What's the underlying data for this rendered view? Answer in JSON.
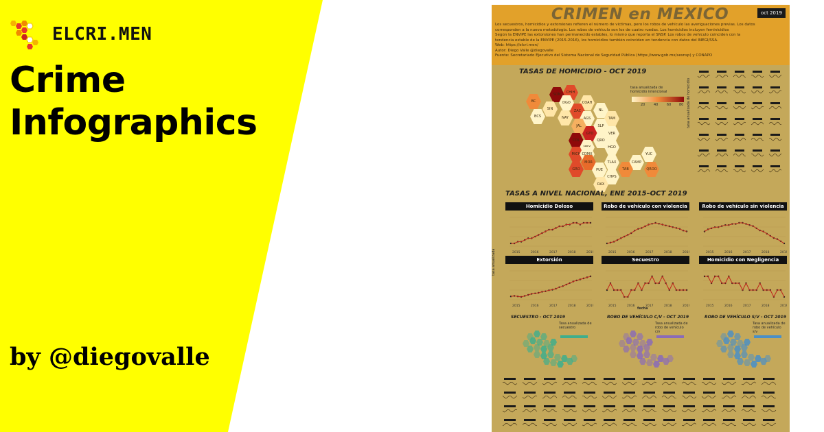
{
  "brand": {
    "name": "ELCRI.MEN",
    "logo_icon": "hexagon-cluster-icon"
  },
  "headline": {
    "line1": "Crime",
    "line2": "Infographics"
  },
  "byline": "by @diegovalle",
  "colors": {
    "banner": "#ffff00",
    "poster_bg": "#c4a85a",
    "poster_header": "#e2a12a"
  },
  "poster": {
    "title": "CRIMEN en MEXICO",
    "badge": "oct 2019",
    "intro": [
      "Los secuestros, homicidios y extorsiones refieren el número de víctimas, pero los robos de vehículo las averiguaciones previas. Los datos",
      "corresponden a la nueva metodología. Los robos de vehículo son los de cuatro ruedas. Los homicidios incluyen feminicidios",
      "Según la ENVIPE las extorsiones han permanecido estables, lo mismo que reporta el SNSP. Los robos de vehículo coinciden con la",
      "tendencia estable de la ENVIPE (2015-2016), los homicidios también coinciden en tendencia con datos del INEGI/SSA.",
      "Web: https://elcri.men/",
      "Autor: Diego Valle @diegovalle",
      "Fuente: Secretariado Ejecutivo del Sistema Nacional de Seguridad Pública (https://www.gob.mx/sesnsp) y CONAPO"
    ],
    "section_homicide": "TASAS DE HOMICIDIO - OCT 2019",
    "legend_title": "tasa anualizada de homicidio intencional",
    "legend_ticks": [
      "20",
      "40",
      "60",
      "80"
    ],
    "side_axis": "tasa anualizada de homicidio",
    "states": [
      {
        "code": "SON"
      },
      {
        "code": "CHIH"
      },
      {
        "code": "BC"
      },
      {
        "code": "DGO"
      },
      {
        "code": "COAH"
      },
      {
        "code": "SIN"
      },
      {
        "code": "ZAC"
      },
      {
        "code": "NL"
      },
      {
        "code": "BCS"
      },
      {
        "code": "NAY"
      },
      {
        "code": "AGS"
      },
      {
        "code": "TAM"
      },
      {
        "code": "JAL"
      },
      {
        "code": "SLP"
      },
      {
        "code": "GTO"
      },
      {
        "code": "VER"
      },
      {
        "code": "COL"
      },
      {
        "code": "QRO"
      },
      {
        "code": "MEX"
      },
      {
        "code": "HGO"
      },
      {
        "code": "MICH"
      },
      {
        "code": "CDMX"
      },
      {
        "code": "YUC"
      },
      {
        "code": "MOR"
      },
      {
        "code": "TLAX"
      },
      {
        "code": "CAMP"
      },
      {
        "code": "GRO"
      },
      {
        "code": "PUE"
      },
      {
        "code": "TAB"
      },
      {
        "code": "QROO"
      },
      {
        "code": "CHPS"
      },
      {
        "code": "OAX"
      }
    ],
    "section_national": "TASAS A NIVEL NACIONAL, ENE 2015–OCT 2019",
    "national_axis": "tasa anualizada",
    "national_xlabel": "fecha",
    "years": [
      "2015",
      "2016",
      "2017",
      "2018",
      "2019"
    ],
    "panels": [
      {
        "title": "Homicidio Doloso",
        "series": [
          17,
          17,
          18,
          18,
          19,
          20,
          20,
          21,
          22,
          23,
          24,
          25,
          25,
          26,
          27,
          27,
          28,
          28,
          29,
          29,
          28,
          29,
          29,
          29
        ]
      },
      {
        "title": "Robo de vehículo con violencia",
        "series": [
          40,
          41,
          42,
          44,
          46,
          48,
          50,
          52,
          55,
          57,
          58,
          60,
          62,
          63,
          64,
          63,
          62,
          61,
          60,
          59,
          58,
          57,
          55,
          54
        ]
      },
      {
        "title": "Robo de vehículo sin violencia",
        "series": [
          110,
          112,
          113,
          114,
          114,
          115,
          116,
          116,
          117,
          117,
          118,
          118,
          117,
          116,
          115,
          113,
          111,
          110,
          108,
          106,
          104,
          103,
          101,
          99
        ]
      },
      {
        "title": "Extorsión",
        "series": [
          4.5,
          4.6,
          4.5,
          4.4,
          4.6,
          4.8,
          5.0,
          5.1,
          5.2,
          5.4,
          5.5,
          5.7,
          5.8,
          6.0,
          6.3,
          6.5,
          6.8,
          7.1,
          7.4,
          7.6,
          7.8,
          8.0,
          8.2,
          8.4
        ]
      },
      {
        "title": "Secuestro",
        "series": [
          1.0,
          1.1,
          1.0,
          1.0,
          1.0,
          0.9,
          0.9,
          1.0,
          1.0,
          1.1,
          1.0,
          1.1,
          1.1,
          1.2,
          1.1,
          1.1,
          1.2,
          1.1,
          1.0,
          1.1,
          1.0,
          1.0,
          1.0,
          1.0
        ]
      },
      {
        "title": "Homicidio con Negligencia",
        "series": [
          14,
          14,
          13,
          14,
          14,
          13,
          13,
          14,
          13,
          13,
          13,
          12,
          13,
          12,
          12,
          12,
          13,
          12,
          12,
          12,
          11,
          12,
          12,
          11
        ]
      }
    ],
    "maps": [
      {
        "title": "SECUESTRO - OCT 2019",
        "legend": "Tasa anualizada de secuestro",
        "color": "#3fae8c"
      },
      {
        "title": "ROBO DE VEHÍCULO C/V - OCT 2019",
        "legend": "Tasa anualizada de robo de vehículo c/v",
        "color": "#8a6bb8"
      },
      {
        "title": "ROBO DE VEHÍCULO S/V - OCT 2019",
        "legend": "Tasa anualizada de robo de vehículo s/v",
        "color": "#4a8fc6"
      }
    ]
  }
}
